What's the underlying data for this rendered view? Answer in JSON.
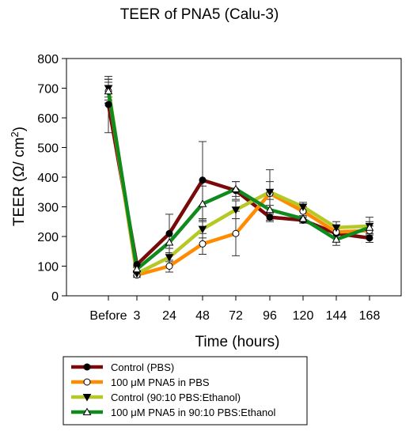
{
  "chart_data": {
    "type": "line",
    "title": "TEER of PNA5 (Calu-3)",
    "xlabel": "Time (hours)",
    "ylabel_main": "TEER (Ω/ cm",
    "ylabel_sup": "2",
    "ylabel_close": ")",
    "categories": [
      "Before",
      "3",
      "24",
      "48",
      "72",
      "96",
      "120",
      "144",
      "168"
    ],
    "yticks": [
      "0",
      "100",
      "200",
      "300",
      "400",
      "500",
      "600",
      "700",
      "800"
    ],
    "ylim": [
      0,
      800
    ],
    "grid": false,
    "legend_position": "bottom",
    "series": [
      {
        "name": "Control (PBS)",
        "color": "#7a0a0a",
        "marker": "filled-circle",
        "values": [
          645,
          105,
          210,
          390,
          355,
          265,
          255,
          210,
          195
        ],
        "errors": [
          95,
          10,
          65,
          130,
          30,
          15,
          10,
          15,
          15
        ]
      },
      {
        "name": "100 μM PNA5 in PBS",
        "color": "#ff8c00",
        "marker": "open-circle",
        "values": [
          690,
          70,
          100,
          175,
          210,
          345,
          285,
          215,
          220
        ],
        "errors": [
          40,
          8,
          20,
          35,
          75,
          40,
          15,
          20,
          15
        ]
      },
      {
        "name": "Control (90:10 PBS:Ethanol)",
        "color": "#b5c826",
        "marker": "filled-triangle-down",
        "values": [
          700,
          75,
          130,
          225,
          290,
          350,
          300,
          230,
          235
        ],
        "errors": [
          30,
          8,
          15,
          30,
          30,
          75,
          15,
          20,
          30
        ]
      },
      {
        "name": "100 μM PNA5 in 90:10 PBS:Ethanol",
        "color": "#0f8a1e",
        "marker": "open-triangle-up",
        "values": [
          690,
          90,
          180,
          310,
          360,
          290,
          260,
          190,
          230
        ],
        "errors": [
          30,
          10,
          20,
          60,
          25,
          35,
          10,
          20,
          20
        ]
      }
    ]
  }
}
